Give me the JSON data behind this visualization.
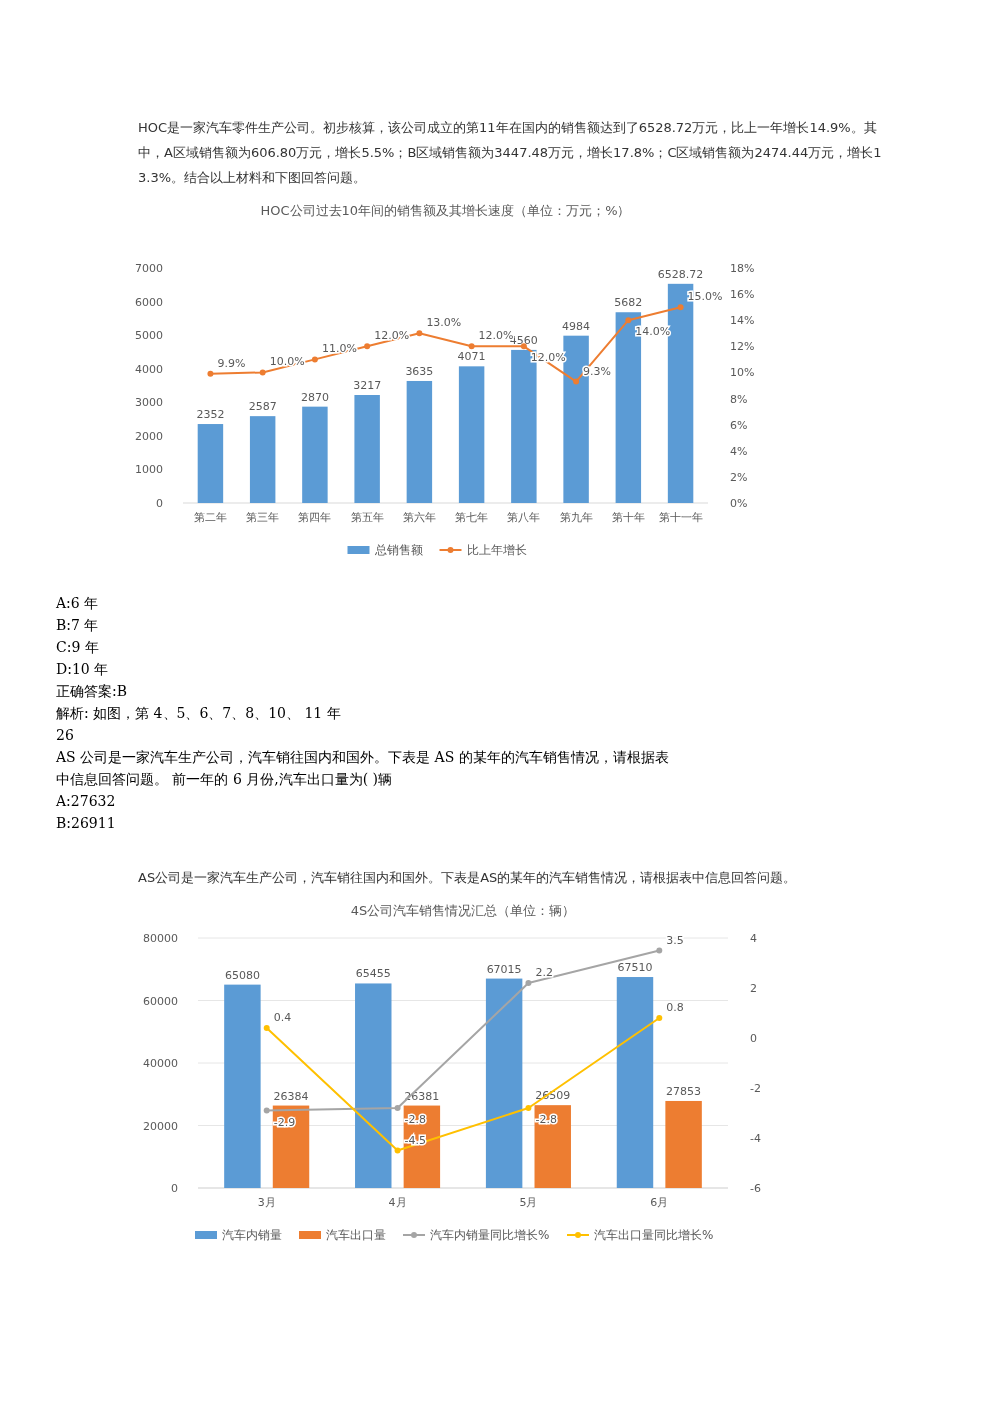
{
  "chart_data": [
    {
      "type": "bar",
      "title": "HOC公司过去10年间的销售额及其增长速度（单位：万元；%）",
      "subtitle": "HOC是一家汽车零件生产公司。初步核算，该公司成立的第11年在国内的销售额达到了6528.72万元，比上一年增长14.9%。其中，A区域销售额为606.80万元，增长5.5%；B区域销售额为3447.48万元，增长17.8%；C区域销售额为2474.44万元，增长13.3%。结合以上材料和下图回答问题。",
      "annotations": [
        "A:6 年",
        "B:7 年",
        "C:9 年",
        "D:10 年",
        "正确答案:B",
        "解析: 如图，第 4、5、6、7、8、10、 11 年",
        "26",
        "AS 公司是一家汽车生产公司，汽车销往国内和国外。下表是 AS 的某年的汽车销售情况，请根据表",
        "中信息回答问题。 前一年的 6 月份,汽车出口量为( )辆",
        "A:27632",
        "B:26911"
      ],
      "categories": [
        "第二年",
        "第三年",
        "第四年",
        "第五年",
        "第六年",
        "第七年",
        "第八年",
        "第九年",
        "第十年",
        "第十一年"
      ],
      "series": [
        {
          "name": "总销售额",
          "color": "#5b9bd5",
          "values": [
            2352,
            2587,
            2870,
            3217,
            3635,
            4071,
            4560,
            4984,
            5682,
            6528.72
          ],
          "value_labels": [
            "2352",
            "2587",
            "2870",
            "3217",
            "3635",
            "4071",
            "4560",
            "4984",
            "5682",
            "6528.72"
          ]
        },
        {
          "name": "比上年增长",
          "type": "line",
          "axis": "y2",
          "color": "#ed7d31",
          "values": [
            9.9,
            10.0,
            11.0,
            12.0,
            13.0,
            12.0,
            12.0,
            9.3,
            14.0,
            15.0
          ],
          "value_labels": [
            "9.9%",
            "10.0%",
            "11.0%",
            "12.0%",
            "13.0%",
            "12.0%",
            "12.0%",
            "9.3%",
            "14.0%",
            "15.0%"
          ]
        }
      ],
      "ylim": [
        0,
        7000
      ],
      "yticks": [
        0,
        1000,
        2000,
        3000,
        4000,
        5000,
        6000,
        7000
      ],
      "y2lim": [
        0,
        18
      ],
      "y2ticks": [
        {
          "value": 0,
          "label": "0%"
        },
        {
          "value": 2,
          "label": "2%"
        },
        {
          "value": 4,
          "label": "4%"
        },
        {
          "value": 6,
          "label": "6%"
        },
        {
          "value": 8,
          "label": "8%"
        },
        {
          "value": 10,
          "label": "10%"
        },
        {
          "value": 12,
          "label": "12%"
        },
        {
          "value": 14,
          "label": "14%"
        },
        {
          "value": 16,
          "label": "16%"
        },
        {
          "value": 18,
          "label": "18%"
        }
      ],
      "marker": "circle",
      "legend": "bottom",
      "grid": false
    },
    {
      "type": "bar",
      "title": "4S公司汽车销售情况汇总（单位：辆）",
      "subtitle": "AS公司是一家汽车生产公司，汽车销往国内和国外。下表是AS的某年的汽车销售情况，请根据表中信息回答问题。",
      "categories": [
        "3月",
        "4月",
        "5月",
        "6月"
      ],
      "series": [
        {
          "name": "汽车内销量",
          "color": "#5b9bd5",
          "values": [
            65080,
            65455,
            67015,
            67510
          ],
          "value_labels": [
            "65080",
            "65455",
            "67015",
            "67510"
          ]
        },
        {
          "name": "汽车出口量",
          "color": "#ed7d31",
          "values": [
            26384,
            26381,
            26509,
            27853
          ],
          "value_labels": [
            "26384",
            "26381",
            "26509",
            "27853"
          ]
        },
        {
          "name": "汽车内销量同比增长%",
          "type": "line",
          "axis": "y2",
          "color": "#a5a5a5",
          "values": [
            -2.9,
            -2.8,
            2.2,
            3.5
          ],
          "value_labels": [
            "-2.9",
            "-2.8",
            "2.2",
            "3.5"
          ]
        },
        {
          "name": "汽车出口量同比增长%",
          "type": "line",
          "axis": "y2",
          "color": "#ffc000",
          "values": [
            0.4,
            -4.5,
            -2.8,
            0.8
          ],
          "value_labels": [
            "0.4",
            "-4.5",
            "-2.8",
            "0.8"
          ]
        }
      ],
      "ylim": [
        0,
        80000
      ],
      "yticks": [
        0,
        20000,
        40000,
        60000,
        80000
      ],
      "y2lim": [
        -6,
        4
      ],
      "y2ticks": [
        -6,
        -4,
        -2,
        0,
        2,
        4
      ],
      "marker": "circle",
      "legend": "bottom",
      "grid": "y"
    }
  ]
}
